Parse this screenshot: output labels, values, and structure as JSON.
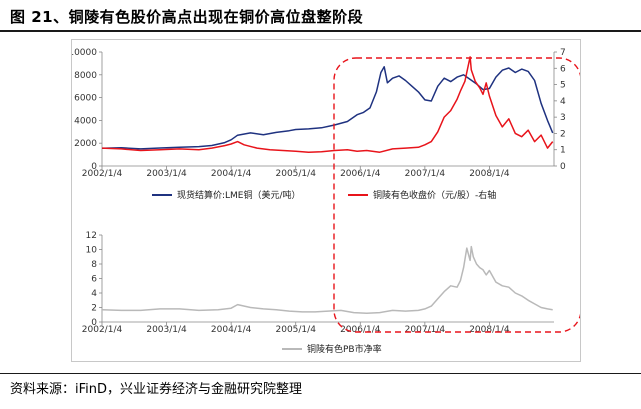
{
  "figure": {
    "title": "图 21、铜陵有色股价高点出现在铜价高位盘整阶段",
    "source": "资料来源：iFinD，兴业证券经济与金融研究院整理"
  },
  "colors": {
    "copper": "#1f3280",
    "stock": "#e8141b",
    "pb": "#b9b9b9",
    "highlight": "#e8141b"
  },
  "chart_data": [
    {
      "type": "line",
      "title": "",
      "x_ticks": [
        "2002/1/4",
        "2003/1/4",
        "2004/1/4",
        "2005/1/4",
        "2006/1/4",
        "2007/1/4",
        "2008/1/4"
      ],
      "x_range": [
        2002.0,
        2009.0
      ],
      "y_left_ticks": [
        "0",
        "2000",
        "4000",
        "6000",
        "8000",
        "10000"
      ],
      "y_left_range": [
        0,
        10000
      ],
      "y_right_ticks": [
        "0",
        "1",
        "2",
        "3",
        "4",
        "5",
        "6",
        "7"
      ],
      "y_right_range": [
        0,
        7
      ],
      "legend_position": "bottom",
      "series": [
        {
          "name": "现货结算价:LME铜（美元/吨）",
          "axis": "left",
          "color": "#1f3280",
          "x": [
            2002.0,
            2002.3,
            2002.6,
            2002.9,
            2003.2,
            2003.5,
            2003.7,
            2003.9,
            2004.0,
            2004.1,
            2004.3,
            2004.5,
            2004.7,
            2004.9,
            2005.0,
            2005.2,
            2005.4,
            2005.6,
            2005.8,
            2005.95,
            2006.05,
            2006.15,
            2006.25,
            2006.32,
            2006.37,
            2006.42,
            2006.5,
            2006.6,
            2006.7,
            2006.8,
            2006.9,
            2007.0,
            2007.1,
            2007.2,
            2007.3,
            2007.4,
            2007.5,
            2007.6,
            2007.7,
            2007.8,
            2007.9,
            2008.0,
            2008.1,
            2008.2,
            2008.3,
            2008.4,
            2008.5,
            2008.6,
            2008.7,
            2008.8,
            2008.9,
            2008.98
          ],
          "y": [
            1550,
            1600,
            1500,
            1580,
            1650,
            1700,
            1800,
            2050,
            2300,
            2700,
            2900,
            2750,
            2950,
            3100,
            3200,
            3250,
            3350,
            3600,
            3900,
            4500,
            4700,
            5100,
            6500,
            8200,
            8700,
            7300,
            7700,
            7900,
            7500,
            7000,
            6500,
            5800,
            5700,
            7000,
            7700,
            7400,
            7800,
            8000,
            7600,
            7200,
            6700,
            6800,
            7800,
            8400,
            8600,
            8200,
            8500,
            8300,
            7500,
            5500,
            4000,
            2900
          ]
        },
        {
          "name": "铜陵有色收盘价（元/股）-右轴",
          "axis": "right",
          "color": "#e8141b",
          "x": [
            2002.0,
            2002.3,
            2002.6,
            2002.9,
            2003.2,
            2003.5,
            2003.7,
            2003.9,
            2004.0,
            2004.1,
            2004.2,
            2004.4,
            2004.6,
            2004.8,
            2005.0,
            2005.2,
            2005.4,
            2005.6,
            2005.8,
            2005.95,
            2006.1,
            2006.3,
            2006.5,
            2006.7,
            2006.9,
            2007.0,
            2007.1,
            2007.2,
            2007.3,
            2007.4,
            2007.5,
            2007.55,
            2007.62,
            2007.7,
            2007.72,
            2007.78,
            2007.85,
            2007.9,
            2007.95,
            2008.0,
            2008.1,
            2008.2,
            2008.3,
            2008.4,
            2008.5,
            2008.6,
            2008.7,
            2008.8,
            2008.9,
            2008.98
          ],
          "y": [
            1.1,
            1.05,
            0.95,
            1.0,
            1.05,
            1.0,
            1.1,
            1.25,
            1.35,
            1.5,
            1.3,
            1.1,
            1.0,
            0.95,
            0.9,
            0.85,
            0.88,
            0.95,
            1.0,
            0.9,
            0.95,
            0.85,
            1.05,
            1.1,
            1.15,
            1.3,
            1.5,
            2.1,
            3.0,
            3.4,
            4.1,
            4.6,
            5.2,
            6.7,
            5.9,
            5.2,
            4.8,
            4.4,
            5.1,
            4.3,
            3.1,
            2.4,
            2.9,
            2.0,
            1.8,
            2.2,
            1.5,
            1.9,
            1.1,
            1.5
          ]
        }
      ]
    },
    {
      "type": "line",
      "title": "",
      "x_ticks": [
        "2002/1/4",
        "2003/1/4",
        "2004/1/4",
        "2005/1/4",
        "2006/1/4",
        "2007/1/4",
        "2008/1/4"
      ],
      "x_range": [
        2002.0,
        2009.0
      ],
      "y_left_ticks": [
        "0",
        "2",
        "4",
        "6",
        "8",
        "10",
        "12"
      ],
      "y_left_range": [
        0,
        12
      ],
      "legend_position": "bottom",
      "series": [
        {
          "name": "铜陵有色PB市净率",
          "axis": "left",
          "color": "#b9b9b9",
          "x": [
            2002.0,
            2002.3,
            2002.6,
            2002.9,
            2003.2,
            2003.5,
            2003.8,
            2004.0,
            2004.1,
            2004.3,
            2004.5,
            2004.7,
            2004.9,
            2005.1,
            2005.3,
            2005.5,
            2005.7,
            2005.9,
            2006.1,
            2006.3,
            2006.5,
            2006.7,
            2006.9,
            2007.0,
            2007.1,
            2007.2,
            2007.3,
            2007.4,
            2007.5,
            2007.55,
            2007.6,
            2007.65,
            2007.7,
            2007.72,
            2007.75,
            2007.8,
            2007.85,
            2007.9,
            2007.95,
            2008.0,
            2008.1,
            2008.2,
            2008.3,
            2008.4,
            2008.5,
            2008.6,
            2008.7,
            2008.8,
            2008.9,
            2008.98
          ],
          "y": [
            1.7,
            1.6,
            1.6,
            1.8,
            1.8,
            1.6,
            1.7,
            1.9,
            2.4,
            2.0,
            1.8,
            1.7,
            1.5,
            1.4,
            1.4,
            1.5,
            1.6,
            1.3,
            1.2,
            1.3,
            1.6,
            1.5,
            1.6,
            1.8,
            2.2,
            3.2,
            4.2,
            5.0,
            4.8,
            5.7,
            7.5,
            10.2,
            8.5,
            10.4,
            9.0,
            8.0,
            7.5,
            7.2,
            6.5,
            7.1,
            5.5,
            5.0,
            4.8,
            4.0,
            3.6,
            3.0,
            2.5,
            2.0,
            1.8,
            1.7
          ]
        }
      ]
    }
  ]
}
